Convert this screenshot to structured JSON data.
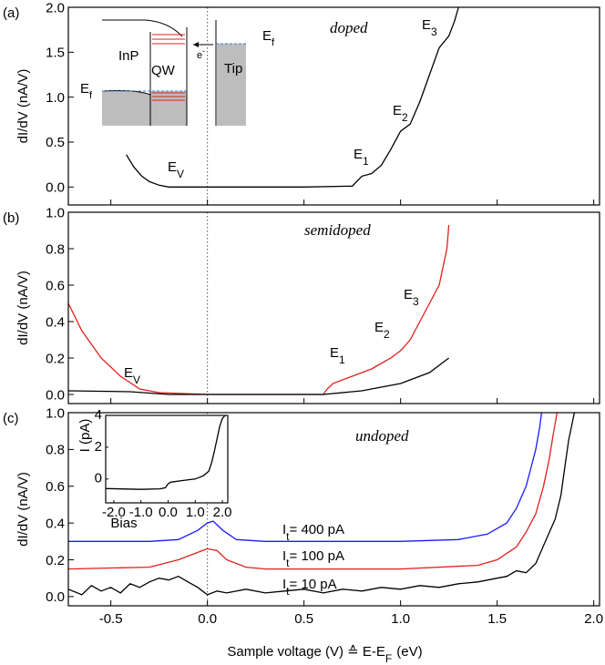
{
  "chart_data": [
    {
      "type": "line",
      "panel": "(a)",
      "label": "doped",
      "ylabel": "dI/dV  (nA/V)",
      "xlim": [
        -0.72,
        2.03
      ],
      "ylim": [
        -0.2,
        2.0
      ],
      "vline": 0,
      "xtick_labels": false,
      "xticks": [
        -0.5,
        {
          "value": 0,
          "label": "0.0"
        },
        0.5,
        {
          "value": 1,
          "label": "1.0"
        },
        1.5,
        {
          "value": 2,
          "label": "2.0"
        }
      ],
      "yticks": [
        {
          "value": 0,
          "label": "0.0"
        },
        0.5,
        {
          "value": 1,
          "label": "1.0"
        },
        1.5,
        {
          "value": 2,
          "label": "2.0"
        }
      ],
      "series": [
        {
          "color": "#000000",
          "x": [
            -0.42,
            -0.38,
            -0.34,
            -0.3,
            -0.25,
            -0.2,
            0,
            0.5,
            0.75,
            0.8,
            0.85,
            0.9,
            0.95,
            1.0,
            1.05,
            1.1,
            1.15,
            1.2,
            1.25,
            1.28,
            1.3
          ],
          "values": [
            0.36,
            0.22,
            0.12,
            0.06,
            0.02,
            0,
            0,
            0,
            0.01,
            0.12,
            0.15,
            0.24,
            0.42,
            0.62,
            0.7,
            0.95,
            1.25,
            1.55,
            1.68,
            1.85,
            2.0
          ]
        }
      ],
      "annotations": [
        {
          "text": "E",
          "sub": "V"
        },
        {
          "text": "E",
          "sub": "1"
        },
        {
          "text": "E",
          "sub": "2"
        },
        {
          "text": "E",
          "sub": "3"
        }
      ],
      "schematic": {
        "inp": "InP",
        "qw": "QW",
        "tip": "Tip",
        "electron": "e",
        "electron_sup": "-",
        "fermi": "E",
        "fermi_sub": "f"
      }
    },
    {
      "type": "line",
      "panel": "(b)",
      "label": "semidoped",
      "ylabel": "dI/dV  (nA/V)",
      "xlim": [
        -0.72,
        2.03
      ],
      "ylim": [
        -0.05,
        1.0
      ],
      "vline": 0,
      "xtick_labels": false,
      "xticks": [
        -0.5,
        {
          "value": 0,
          "label": "0.0"
        },
        0.5,
        {
          "value": 1,
          "label": "1.0"
        },
        1.5,
        {
          "value": 2,
          "label": "2.0"
        }
      ],
      "yticks": [
        {
          "value": 0,
          "label": "0.0"
        },
        0.2,
        0.4,
        0.6,
        0.8,
        {
          "value": 1,
          "label": "1.0"
        }
      ],
      "series": [
        {
          "color": "#e0201b",
          "x": [
            -0.72,
            -0.65,
            -0.55,
            -0.45,
            -0.35,
            -0.25,
            0,
            0.6,
            0.62,
            0.65,
            0.75,
            0.85,
            0.95,
            1.0,
            1.05,
            1.1,
            1.15,
            1.2,
            1.24,
            1.25
          ],
          "values": [
            0.5,
            0.35,
            0.2,
            0.1,
            0.03,
            0.01,
            0,
            0,
            0.03,
            0.06,
            0.1,
            0.14,
            0.2,
            0.24,
            0.3,
            0.4,
            0.5,
            0.6,
            0.8,
            0.93
          ]
        },
        {
          "color": "#000000",
          "x": [
            -0.72,
            -0.4,
            -0.2,
            0,
            0.6,
            0.8,
            1.0,
            1.15,
            1.25
          ],
          "values": [
            0.02,
            0.015,
            0,
            0,
            0,
            0.02,
            0.06,
            0.12,
            0.2
          ]
        }
      ],
      "annotations": [
        {
          "text": "E",
          "sub": "V"
        },
        {
          "text": "E",
          "sub": "1"
        },
        {
          "text": "E",
          "sub": "2"
        },
        {
          "text": "E",
          "sub": "3"
        }
      ]
    },
    {
      "type": "line",
      "panel": "(c)",
      "label": "undoped",
      "ylabel": "dI/dV  (nA/V)",
      "xlabel": "Sample voltage (V) ≙ E-E",
      "xlabel_sub": "F",
      "xlabel_end": "(eV)",
      "xlim": [
        -0.72,
        2.03
      ],
      "ylim": [
        -0.05,
        1.0
      ],
      "vline": 0,
      "xtick_labels": true,
      "xticks": [
        -0.5,
        {
          "value": 0,
          "label": "0.0"
        },
        0.5,
        {
          "value": 1,
          "label": "1.0"
        },
        1.5,
        {
          "value": 2,
          "label": "2.0"
        }
      ],
      "yticks": [
        {
          "value": 0,
          "label": "0.0"
        },
        0.2,
        0.4,
        0.6,
        0.8,
        {
          "value": 1,
          "label": "1.0"
        }
      ],
      "series": [
        {
          "name": "I",
          "name_sub": "t",
          "name_end": "= 400 pA",
          "color": "#1a1aff",
          "x": [
            -0.72,
            -0.3,
            -0.15,
            -0.05,
            0,
            0.03,
            0.08,
            0.15,
            0.3,
            1.0,
            1.3,
            1.45,
            1.55,
            1.6,
            1.65,
            1.68,
            1.7,
            1.72,
            1.73
          ],
          "values": [
            0.3,
            0.3,
            0.31,
            0.36,
            0.4,
            0.41,
            0.36,
            0.31,
            0.3,
            0.3,
            0.31,
            0.34,
            0.4,
            0.48,
            0.6,
            0.72,
            0.8,
            0.92,
            1.0
          ]
        },
        {
          "name": "I",
          "name_sub": "t",
          "name_end": "= 100 pA",
          "color": "#e0201b",
          "x": [
            -0.72,
            -0.3,
            -0.15,
            -0.05,
            0,
            0.05,
            0.1,
            0.2,
            0.3,
            1.0,
            1.4,
            1.5,
            1.6,
            1.65,
            1.7,
            1.74,
            1.77,
            1.79,
            1.81
          ],
          "values": [
            0.15,
            0.16,
            0.2,
            0.24,
            0.26,
            0.25,
            0.2,
            0.16,
            0.15,
            0.15,
            0.17,
            0.2,
            0.27,
            0.35,
            0.45,
            0.6,
            0.75,
            0.88,
            1.0
          ]
        },
        {
          "name": "I",
          "name_sub": "t",
          "name_end": "=   10 pA",
          "color": "#000000",
          "x": [
            -0.72,
            -0.65,
            -0.6,
            -0.55,
            -0.5,
            -0.45,
            -0.4,
            -0.35,
            -0.3,
            -0.25,
            -0.2,
            -0.15,
            -0.1,
            -0.05,
            0,
            0.05,
            0.1,
            0.2,
            0.3,
            0.4,
            0.5,
            0.6,
            0.7,
            0.8,
            0.9,
            1.0,
            1.1,
            1.2,
            1.3,
            1.4,
            1.5,
            1.55,
            1.6,
            1.65,
            1.7,
            1.75,
            1.8,
            1.83,
            1.85,
            1.87,
            1.9
          ],
          "values": [
            0.04,
            0.01,
            0.06,
            0.03,
            0.05,
            0.02,
            0.07,
            0.05,
            0.08,
            0.1,
            0.09,
            0.11,
            0.08,
            0.05,
            0.01,
            0.03,
            0.02,
            0.04,
            0.02,
            0.03,
            0.04,
            0.02,
            0.04,
            0.03,
            0.05,
            0.04,
            0.06,
            0.05,
            0.07,
            0.08,
            0.1,
            0.11,
            0.14,
            0.13,
            0.18,
            0.3,
            0.42,
            0.55,
            0.7,
            0.85,
            1.0
          ]
        }
      ]
    },
    {
      "type": "line",
      "xlabel": "Bias",
      "ylabel": "I (pA)",
      "xtick_labels": true,
      "xlim": [
        -2.3,
        2.2
      ],
      "ylim": [
        -1.5,
        4
      ],
      "xticks": [
        {
          "value": -2,
          "label": "-2.0"
        },
        {
          "value": -1,
          "label": "-1.0"
        },
        {
          "value": 0,
          "label": "0.0"
        },
        {
          "value": 1,
          "label": "1.0"
        },
        {
          "value": 2,
          "label": "2.0"
        }
      ],
      "yticks": [
        0,
        2,
        4
      ],
      "series": [
        {
          "color": "#000000",
          "x": [
            -2.3,
            -1.0,
            -0.3,
            -0.1,
            0,
            0.1,
            0.5,
            1.0,
            1.3,
            1.5,
            1.6,
            1.7,
            1.8,
            1.9,
            2.0,
            2.1
          ],
          "values": [
            -0.6,
            -0.65,
            -0.62,
            -0.55,
            -0.3,
            -0.2,
            -0.1,
            0,
            0.2,
            0.5,
            1.0,
            1.7,
            2.5,
            3.3,
            3.8,
            4.0
          ]
        }
      ]
    }
  ]
}
